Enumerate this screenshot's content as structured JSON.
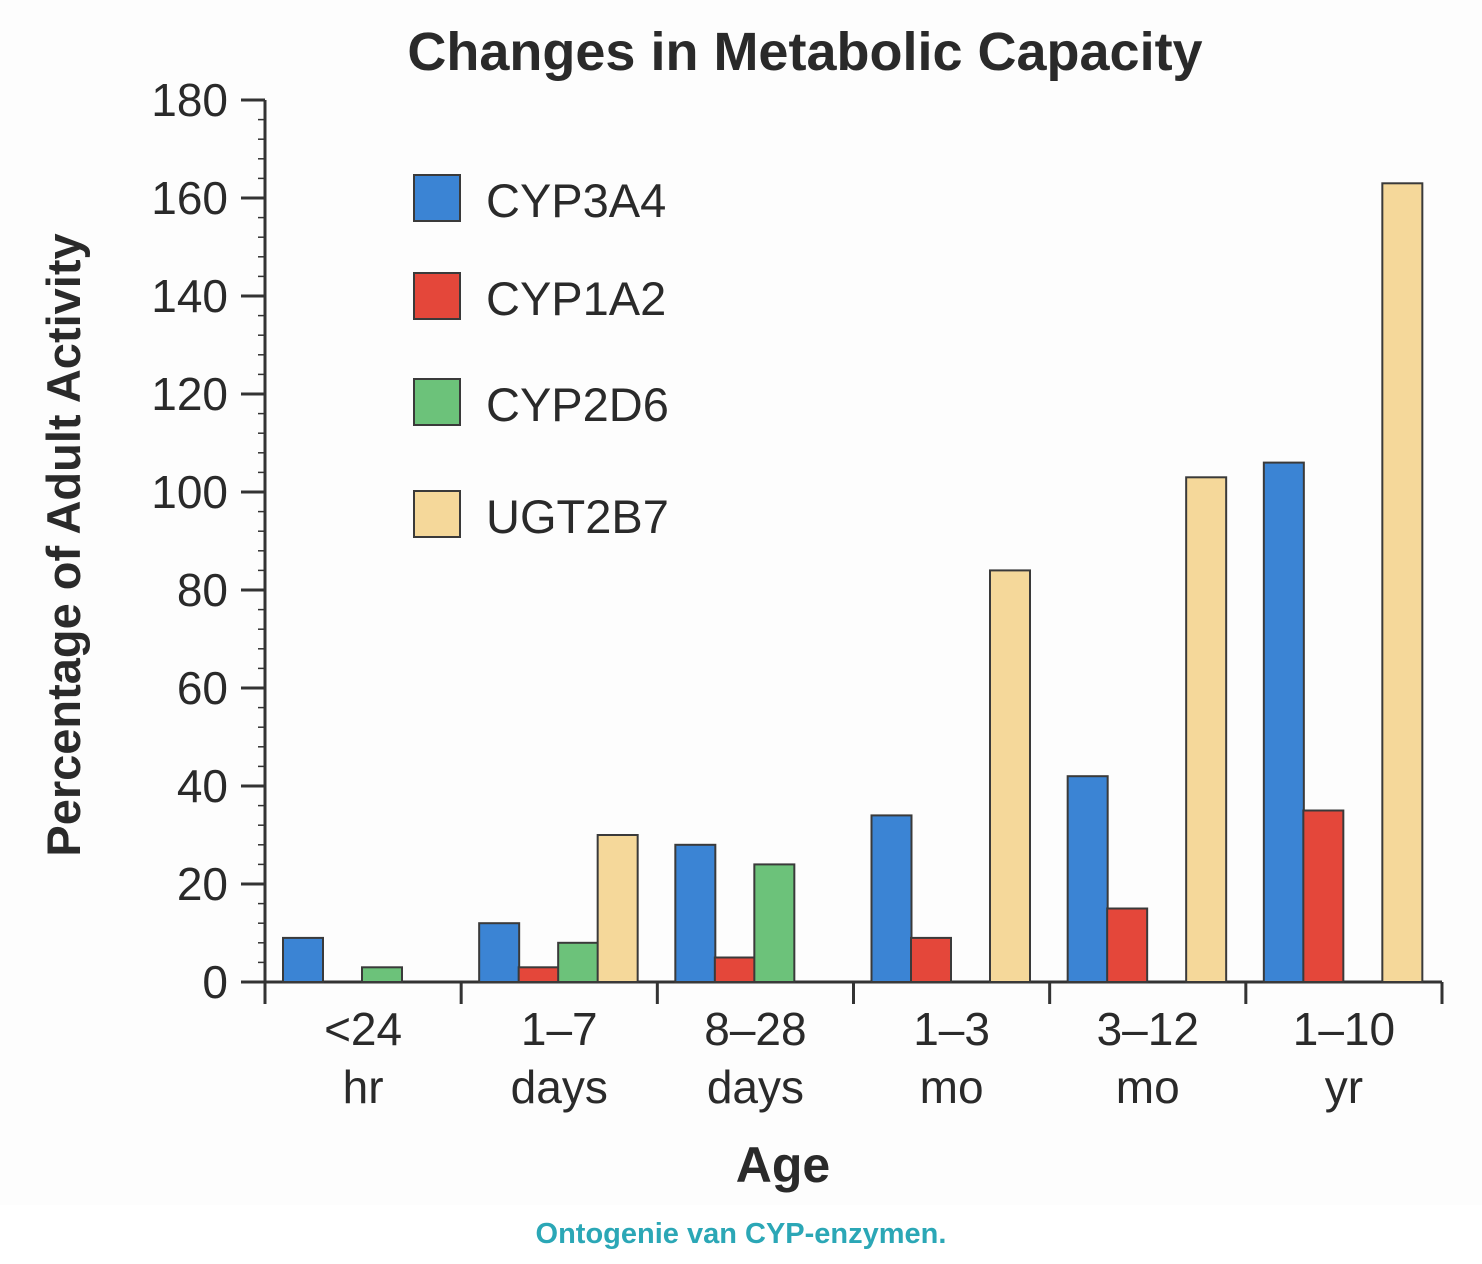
{
  "chart_data": {
    "type": "bar",
    "title": "Changes in Metabolic Capacity",
    "xlabel": "Age",
    "ylabel": "Percentage of Adult Activity",
    "ylim": [
      0,
      180
    ],
    "yticks": [
      0,
      20,
      40,
      60,
      80,
      100,
      120,
      140,
      160,
      180
    ],
    "categories": [
      {
        "line1": "<24",
        "line2": "hr"
      },
      {
        "line1": "1–7",
        "line2": "days"
      },
      {
        "line1": "8–28",
        "line2": "days"
      },
      {
        "line1": "1–3",
        "line2": "mo"
      },
      {
        "line1": "3–12",
        "line2": "mo"
      },
      {
        "line1": "1–10",
        "line2": "yr"
      }
    ],
    "series": [
      {
        "name": "CYP3A4",
        "color": "#3b84d4",
        "values": [
          9,
          12,
          28,
          34,
          42,
          106
        ]
      },
      {
        "name": "CYP1A2",
        "color": "#e4473a",
        "values": [
          0,
          3,
          5,
          9,
          15,
          35
        ]
      },
      {
        "name": "CYP2D6",
        "color": "#6cc27a",
        "values": [
          3,
          8,
          24,
          0,
          0,
          0
        ]
      },
      {
        "name": "UGT2B7",
        "color": "#f5d89a",
        "values": [
          0,
          30,
          0,
          84,
          103,
          163
        ]
      }
    ],
    "grid": false,
    "legend": "top-left"
  },
  "caption": "Ontogenie van CYP-enzymen."
}
